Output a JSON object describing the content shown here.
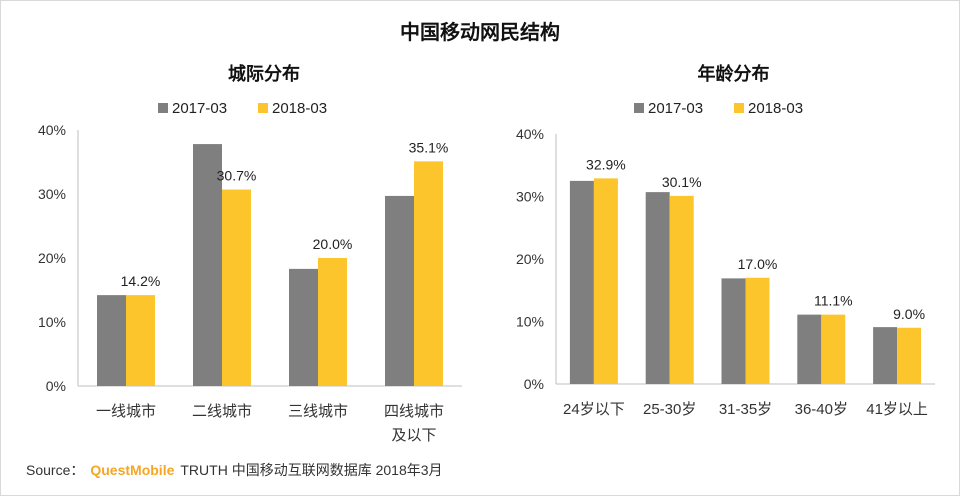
{
  "title": "中国移动网民结构",
  "source": {
    "label": "Source：",
    "brand": "QuestMobile",
    "text": "TRUTH 中国移动互联网数据库 2018年3月"
  },
  "colors": {
    "series1": "#7f7f7f",
    "series2": "#fcc52c",
    "axis": "#bfbfbf"
  },
  "chart_data": [
    {
      "type": "bar",
      "title": "城际分布",
      "categories": [
        [
          "一线城市"
        ],
        [
          "二线城市"
        ],
        [
          "三线城市"
        ],
        [
          "四线城市",
          "及以下"
        ]
      ],
      "series": [
        {
          "name": "2017-03",
          "values": [
            14.2,
            37.8,
            18.3,
            29.7
          ]
        },
        {
          "name": "2018-03",
          "values": [
            14.2,
            30.7,
            20.0,
            35.1
          ]
        }
      ],
      "data_labels": [
        "14.2%",
        "30.7%",
        "20.0%",
        "35.1%"
      ],
      "yticks": [
        "0%",
        "10%",
        "20%",
        "30%",
        "40%"
      ],
      "ylim": [
        0,
        40
      ],
      "legend": "top",
      "grid": false
    },
    {
      "type": "bar",
      "title": "年龄分布",
      "categories": [
        [
          "24岁以下"
        ],
        [
          "25-30岁"
        ],
        [
          "31-35岁"
        ],
        [
          "36-40岁"
        ],
        [
          "41岁以上"
        ]
      ],
      "series": [
        {
          "name": "2017-03",
          "values": [
            32.5,
            30.7,
            16.9,
            11.1,
            9.1
          ]
        },
        {
          "name": "2018-03",
          "values": [
            32.9,
            30.1,
            17.0,
            11.1,
            9.0
          ]
        }
      ],
      "data_labels": [
        "32.9%",
        "30.1%",
        "17.0%",
        "11.1%",
        "9.0%"
      ],
      "yticks": [
        "0%",
        "10%",
        "20%",
        "30%",
        "40%"
      ],
      "ylim": [
        0,
        40
      ],
      "legend": "top",
      "grid": false
    }
  ]
}
